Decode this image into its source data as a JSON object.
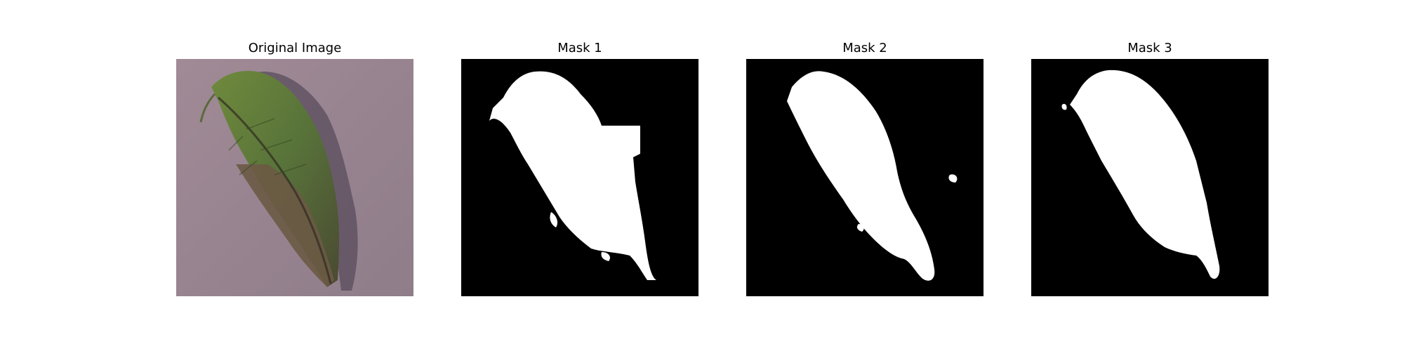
{
  "figure": {
    "panels": [
      {
        "title": "Original Image",
        "kind": "photo",
        "subject": "leaf-icon"
      },
      {
        "title": "Mask 1",
        "kind": "mask",
        "background_color": "#000000",
        "foreground_color": "#ffffff"
      },
      {
        "title": "Mask 2",
        "kind": "mask",
        "background_color": "#000000",
        "foreground_color": "#ffffff"
      },
      {
        "title": "Mask 3",
        "kind": "mask",
        "background_color": "#000000",
        "foreground_color": "#ffffff"
      }
    ]
  },
  "colors": {
    "photo_background": "#9a8590",
    "leaf_green": "#5f7a35",
    "leaf_dark": "#3a3528",
    "leaf_brown": "#6b5a45",
    "shadow": "#5a4e5e"
  }
}
